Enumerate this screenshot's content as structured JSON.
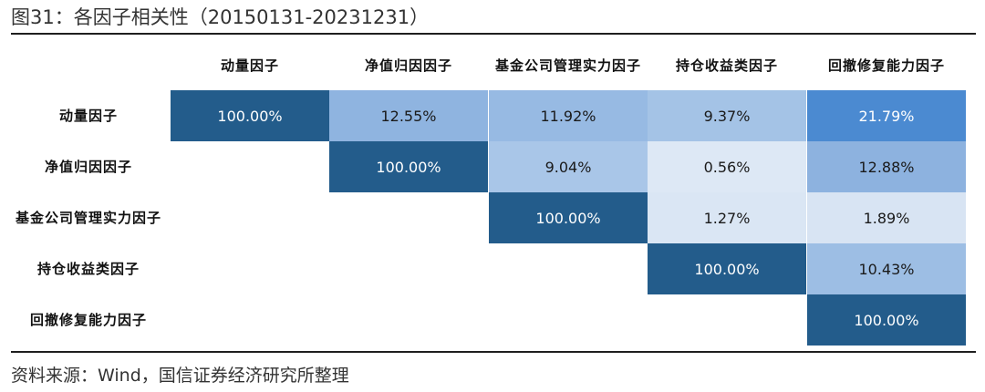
{
  "title": "图31：各因子相关性（20150131-20231231）",
  "source": "资料来源：Wind，国信证券经济研究所整理",
  "colors": {
    "diag": "#235c8b",
    "c_12_55": "#8fb4e0",
    "c_11_92": "#97bae3",
    "c_9_37": "#a4c3e6",
    "c_21_79": "#4b8ad1",
    "c_9_04": "#a9c6e8",
    "c_0_56": "#dde8f5",
    "c_12_88": "#8db2df",
    "c_1_27": "#dae6f4",
    "c_1_89": "#d8e4f3",
    "c_10_43": "#9dbee4",
    "text_light": "#ffffff",
    "text_dark": "#1a1a1a"
  },
  "chart_data": {
    "type": "heatmap",
    "title": "各因子相关性（20150131-20231231）",
    "columns": [
      "动量因子",
      "净值归因因子",
      "基金公司管理实力因子",
      "持仓收益类因子",
      "回撤修复能力因子"
    ],
    "rows": [
      "动量因子",
      "净值归因因子",
      "基金公司管理实力因子",
      "持仓收益类因子",
      "回撤修复能力因子"
    ],
    "col_labels": [
      [
        "动量因子"
      ],
      [
        "净值归因因子"
      ],
      [
        "基金公司管理实力",
        "因子"
      ],
      [
        "持仓收益类因子"
      ],
      [
        "回撤修复能力因子"
      ]
    ],
    "row_labels": [
      [
        "动量因子"
      ],
      [
        "净值归因因子"
      ],
      [
        "基金公司管理实力",
        "因子"
      ],
      [
        "持仓收益类因子"
      ],
      [
        "回撤修复能力因子"
      ]
    ],
    "unit": "%",
    "values": [
      [
        100.0,
        12.55,
        11.92,
        9.37,
        21.79
      ],
      [
        null,
        100.0,
        9.04,
        0.56,
        12.88
      ],
      [
        null,
        null,
        100.0,
        1.27,
        1.89
      ],
      [
        null,
        null,
        null,
        100.0,
        10.43
      ],
      [
        null,
        null,
        null,
        null,
        100.0
      ]
    ],
    "labels": [
      [
        "100.00%",
        "12.55%",
        "11.92%",
        "9.37%",
        "21.79%"
      ],
      [
        null,
        "100.00%",
        "9.04%",
        "0.56%",
        "12.88%"
      ],
      [
        null,
        null,
        "100.00%",
        "1.27%",
        "1.89%"
      ],
      [
        null,
        null,
        null,
        "100.00%",
        "10.43%"
      ],
      [
        null,
        null,
        null,
        null,
        "100.00%"
      ]
    ],
    "cell_colors": [
      [
        "#235c8b",
        "#8fb4e0",
        "#97bae3",
        "#a4c3e6",
        "#4b8ad1"
      ],
      [
        null,
        "#235c8b",
        "#a9c6e8",
        "#dde8f5",
        "#8db2df"
      ],
      [
        null,
        null,
        "#235c8b",
        "#dae6f4",
        "#d8e4f3"
      ],
      [
        null,
        null,
        null,
        "#235c8b",
        "#9dbee4"
      ],
      [
        null,
        null,
        null,
        null,
        "#235c8b"
      ]
    ]
  }
}
